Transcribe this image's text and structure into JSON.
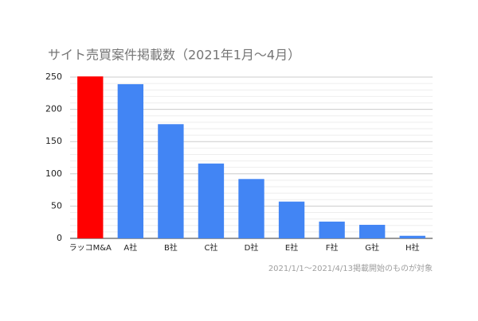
{
  "chart_data": {
    "type": "bar",
    "title": "サイト売買案件掲載数（2021年1月〜4月）",
    "categories": [
      "ラッコM&A",
      "A社",
      "B社",
      "C社",
      "D社",
      "E社",
      "F社",
      "G社",
      "H社"
    ],
    "values": [
      251,
      239,
      177,
      116,
      92,
      57,
      26,
      21,
      4
    ],
    "colors": [
      "#ff0000",
      "#4285f4",
      "#4285f4",
      "#4285f4",
      "#4285f4",
      "#4285f4",
      "#4285f4",
      "#4285f4",
      "#4285f4"
    ],
    "ylim": [
      0,
      250
    ],
    "yticks": [
      0,
      50,
      100,
      150,
      200,
      250
    ],
    "minor_yticks": [
      10,
      20,
      30,
      40,
      60,
      70,
      80,
      90,
      110,
      120,
      130,
      140,
      160,
      170,
      180,
      190,
      210,
      220,
      230,
      240
    ],
    "grid": true,
    "note": "2021/1/1〜2021/4/13掲載開始のものが対象"
  }
}
